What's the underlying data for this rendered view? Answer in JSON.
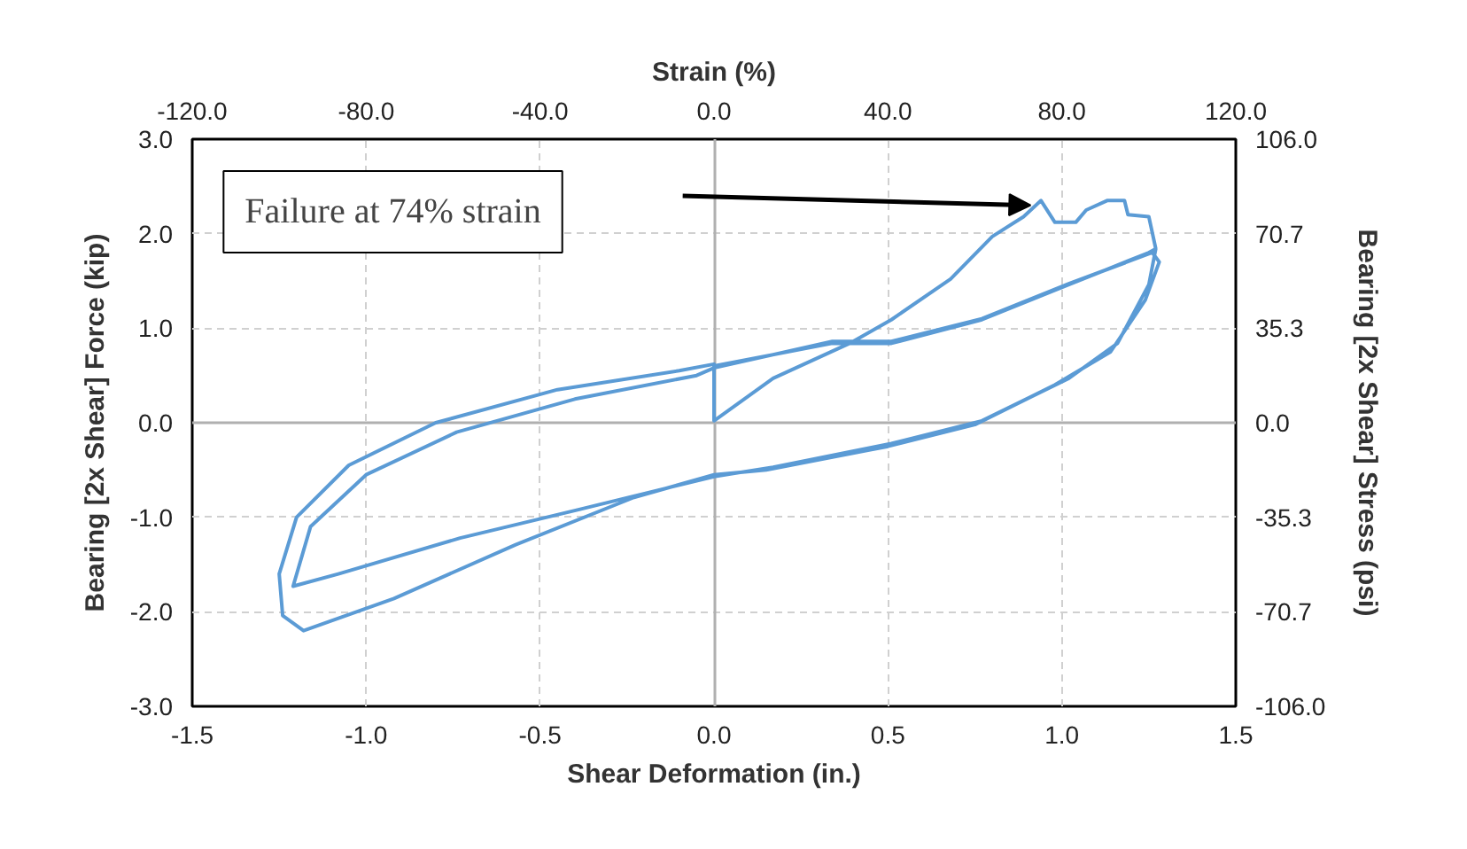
{
  "chart_data": {
    "type": "line",
    "xlabel": "Shear Deformation (in.)",
    "ylabel": "Bearing [2x Shear] Force (kip)",
    "y2label": "Bearing [2x Shear] Stress (psi)",
    "x2label": "Strain (%)",
    "series": [
      {
        "color": "#5b9bd5",
        "x": [
          0,
          0.34,
          0.51,
          0.77,
          1.02,
          1.25,
          1.27,
          1.25,
          1.16,
          1.02,
          0.77,
          0.51,
          0.17,
          0,
          -0.39,
          -0.73,
          -1.08,
          -1.21,
          -1.16,
          -1.0,
          -0.74,
          -0.4,
          -0.05,
          0,
          0.34,
          0.51,
          0.77,
          1.02,
          1.26,
          1.28,
          1.24,
          1.14,
          0.98,
          0.75,
          0.5,
          0.15,
          0,
          -0.23,
          -0.57,
          -0.92,
          -1.18,
          -1.24,
          -1.25,
          -1.2,
          -1.05,
          -0.8,
          -0.45,
          -0.1,
          0,
          0,
          0.17,
          0.39,
          0.51,
          0.68,
          0.8,
          0.89,
          0.94,
          0.98,
          1.04,
          1.07,
          1.13,
          1.18,
          1.19,
          1.25,
          1.27
        ],
        "values": [
          0.6,
          0.84,
          0.84,
          1.09,
          1.46,
          1.8,
          1.84,
          1.46,
          0.84,
          0.47,
          0.02,
          -0.22,
          -0.47,
          -0.57,
          -0.92,
          -1.22,
          -1.6,
          -1.73,
          -1.1,
          -0.55,
          -0.1,
          0.25,
          0.5,
          0.58,
          0.86,
          0.86,
          1.1,
          1.47,
          1.8,
          1.7,
          1.3,
          0.75,
          0.4,
          -0.02,
          -0.25,
          -0.5,
          -0.55,
          -0.79,
          -1.29,
          -1.86,
          -2.2,
          -2.04,
          -1.6,
          -1.0,
          -0.45,
          0.0,
          0.35,
          0.55,
          0.62,
          0.02,
          0.47,
          0.84,
          1.09,
          1.52,
          1.97,
          2.18,
          2.35,
          2.12,
          2.12,
          2.25,
          2.35,
          2.35,
          2.2,
          2.18,
          1.84
        ]
      }
    ],
    "xlim": [
      -1.5,
      1.5
    ],
    "xticks": [
      -1.5,
      {
        "value": -1,
        "label": "-1.0"
      },
      -0.5,
      {
        "value": 0,
        "label": "0.0"
      },
      0.5,
      {
        "value": 1,
        "label": "1.0"
      },
      1.5
    ],
    "ylim": [
      -3,
      3
    ],
    "yticks": [
      {
        "value": -3,
        "label": "-3.0"
      },
      {
        "value": -2,
        "label": "-2.0"
      },
      {
        "value": -1,
        "label": "-1.0"
      },
      {
        "value": 0,
        "label": "0.0"
      },
      {
        "value": 1,
        "label": "1.0"
      },
      {
        "value": 2,
        "label": "2.0"
      },
      {
        "value": 3,
        "label": "3.0"
      }
    ],
    "x2lim": [
      -120,
      120
    ],
    "x2ticks": [
      {
        "value": -120,
        "label": "-120.0"
      },
      {
        "value": -80,
        "label": "-80.0"
      },
      {
        "value": -40,
        "label": "-40.0"
      },
      {
        "value": 0,
        "label": "0.0"
      },
      {
        "value": 40,
        "label": "40.0"
      },
      {
        "value": 80,
        "label": "80.0"
      },
      {
        "value": 120,
        "label": "120.0"
      }
    ],
    "y2lim": [
      -106,
      106
    ],
    "y2ticks": [
      {
        "value": -106,
        "label": "-106.0"
      },
      {
        "value": -70.7,
        "label": "-70.7"
      },
      {
        "value": -35.3,
        "label": "-35.3"
      },
      {
        "value": 0,
        "label": "0.0"
      },
      {
        "value": 35.3,
        "label": "35.3"
      },
      {
        "value": 70.7,
        "label": "70.7"
      },
      {
        "value": 106,
        "label": "106.0"
      }
    ],
    "annotations": [
      "Failure at 74% strain"
    ],
    "grid": true,
    "marker": "none",
    "line_style": "solid"
  }
}
